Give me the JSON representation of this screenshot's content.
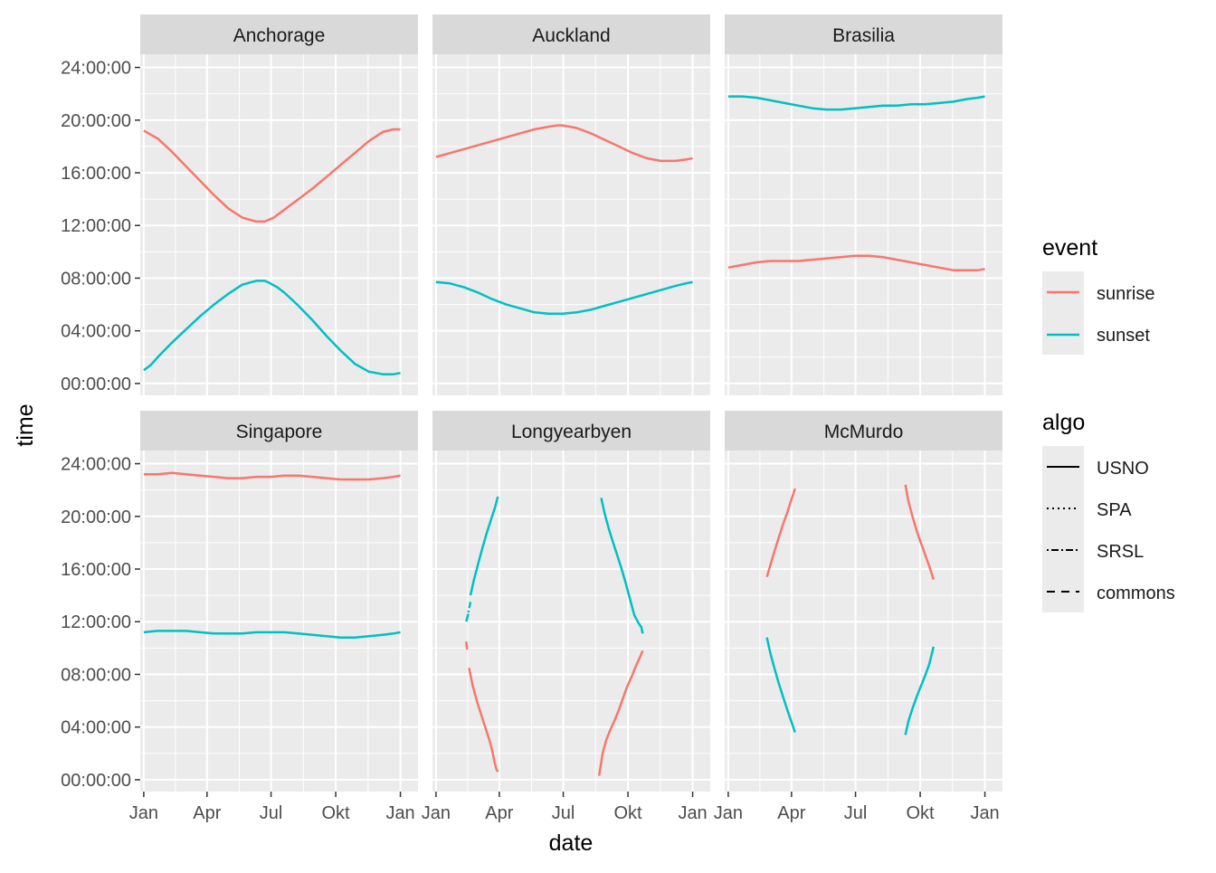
{
  "chart_data": {
    "type": "line",
    "xlabel": "date",
    "ylabel": "time",
    "x_ticks": [
      "Jan",
      "Apr",
      "Jul",
      "Okt",
      "Jan"
    ],
    "y_ticks": [
      "00:00:00",
      "04:00:00",
      "08:00:00",
      "12:00:00",
      "16:00:00",
      "20:00:00",
      "24:00:00"
    ],
    "x_range_days": [
      -5,
      390
    ],
    "y_range_hours": [
      -0.9,
      25.0
    ],
    "grid": true,
    "legend_position": "right",
    "legends": {
      "event": {
        "title": "event",
        "items": [
          {
            "label": "sunrise",
            "color": "#F8766D"
          },
          {
            "label": "sunset",
            "color": "#00BFC4"
          }
        ]
      },
      "algo": {
        "title": "algo",
        "items": [
          {
            "label": "USNO",
            "dash": "solid"
          },
          {
            "label": "SPA",
            "dash": "dotted"
          },
          {
            "label": "SRSL",
            "dash": "dotdash"
          },
          {
            "label": "commons",
            "dash": "dashed"
          }
        ]
      }
    },
    "panels": [
      {
        "title": "Anchorage",
        "series": [
          {
            "event": "sunrise",
            "x": [
              0,
              20,
              40,
              60,
              80,
              100,
              120,
              140,
              160,
              172,
              185,
              200,
              220,
              240,
              260,
              280,
              300,
              320,
              340,
              355,
              365
            ],
            "y": [
              19.2,
              18.6,
              17.6,
              16.5,
              15.4,
              14.3,
              13.3,
              12.6,
              12.3,
              12.3,
              12.6,
              13.2,
              14.0,
              14.8,
              15.7,
              16.6,
              17.5,
              18.4,
              19.1,
              19.3,
              19.3
            ]
          },
          {
            "event": "sunset",
            "x": [
              0,
              10,
              20,
              40,
              60,
              80,
              100,
              120,
              140,
              160,
              172,
              180,
              190,
              200,
              220,
              240,
              260,
              280,
              300,
              320,
              340,
              355,
              365
            ],
            "y": [
              1.0,
              1.4,
              2.0,
              3.1,
              4.1,
              5.1,
              6.0,
              6.8,
              7.5,
              7.8,
              7.8,
              7.6,
              7.3,
              6.9,
              5.9,
              4.8,
              3.6,
              2.5,
              1.5,
              0.9,
              0.7,
              0.7,
              0.8
            ]
          }
        ]
      },
      {
        "title": "Auckland",
        "series": [
          {
            "event": "sunrise",
            "x": [
              0,
              20,
              40,
              60,
              80,
              100,
              120,
              140,
              160,
              172,
              180,
              200,
              220,
              240,
              260,
              280,
              300,
              320,
              340,
              355,
              365
            ],
            "y": [
              17.2,
              17.5,
              17.8,
              18.1,
              18.4,
              18.7,
              19.0,
              19.3,
              19.5,
              19.6,
              19.6,
              19.4,
              19.0,
              18.5,
              18.0,
              17.5,
              17.1,
              16.9,
              16.9,
              17.0,
              17.1
            ]
          },
          {
            "event": "sunset",
            "x": [
              0,
              20,
              40,
              60,
              80,
              100,
              120,
              140,
              160,
              172,
              180,
              200,
              220,
              240,
              260,
              280,
              300,
              320,
              340,
              355,
              365
            ],
            "y": [
              7.7,
              7.6,
              7.3,
              6.9,
              6.4,
              6.0,
              5.7,
              5.4,
              5.3,
              5.3,
              5.3,
              5.4,
              5.6,
              5.9,
              6.2,
              6.5,
              6.8,
              7.1,
              7.4,
              7.6,
              7.7
            ]
          }
        ]
      },
      {
        "title": "Brasilia",
        "series": [
          {
            "event": "sunrise",
            "x": [
              0,
              20,
              40,
              60,
              80,
              100,
              120,
              140,
              160,
              180,
              200,
              220,
              240,
              260,
              280,
              300,
              320,
              340,
              355,
              365
            ],
            "y": [
              8.8,
              9.0,
              9.2,
              9.3,
              9.3,
              9.3,
              9.4,
              9.5,
              9.6,
              9.7,
              9.7,
              9.6,
              9.4,
              9.2,
              9.0,
              8.8,
              8.6,
              8.6,
              8.6,
              8.7
            ]
          },
          {
            "event": "sunset",
            "x": [
              0,
              20,
              40,
              60,
              80,
              100,
              120,
              140,
              160,
              180,
              200,
              220,
              240,
              260,
              280,
              300,
              320,
              340,
              355,
              365
            ],
            "y": [
              21.8,
              21.8,
              21.7,
              21.5,
              21.3,
              21.1,
              20.9,
              20.8,
              20.8,
              20.9,
              21.0,
              21.1,
              21.1,
              21.2,
              21.2,
              21.3,
              21.4,
              21.6,
              21.7,
              21.8
            ]
          }
        ]
      },
      {
        "title": "Singapore",
        "series": [
          {
            "event": "sunrise",
            "x": [
              0,
              20,
              40,
              60,
              80,
              100,
              120,
              140,
              160,
              180,
              200,
              220,
              240,
              260,
              280,
              300,
              320,
              340,
              355,
              365
            ],
            "y": [
              23.2,
              23.2,
              23.3,
              23.2,
              23.1,
              23.0,
              22.9,
              22.9,
              23.0,
              23.0,
              23.1,
              23.1,
              23.0,
              22.9,
              22.8,
              22.8,
              22.8,
              22.9,
              23.0,
              23.1
            ]
          },
          {
            "event": "sunset",
            "x": [
              0,
              20,
              40,
              60,
              80,
              100,
              120,
              140,
              160,
              180,
              200,
              220,
              240,
              260,
              280,
              300,
              320,
              340,
              355,
              365
            ],
            "y": [
              11.2,
              11.3,
              11.3,
              11.3,
              11.2,
              11.1,
              11.1,
              11.1,
              11.2,
              11.2,
              11.2,
              11.1,
              11.0,
              10.9,
              10.8,
              10.8,
              10.9,
              11.0,
              11.1,
              11.2
            ]
          }
        ]
      },
      {
        "title": "Longyearbyen",
        "series": [
          {
            "event": "sunset",
            "algo": "commons",
            "x": [
              43,
              46
            ],
            "y": [
              12.0,
              12.6
            ]
          },
          {
            "event": "sunset",
            "algo": "dotdash",
            "x": [
              46,
              49
            ],
            "y": [
              12.7,
              13.5
            ]
          },
          {
            "event": "sunset",
            "x": [
              49,
              54,
              60,
              66,
              72,
              78,
              84,
              88
            ],
            "y": [
              14.0,
              15.2,
              16.4,
              17.6,
              18.7,
              19.7,
              20.7,
              21.5
            ]
          },
          {
            "event": "sunset",
            "x": [
              235,
              240,
              246,
              252,
              258,
              264,
              270,
              276,
              282,
              288,
              292,
              294
            ],
            "y": [
              21.4,
              20.2,
              19.0,
              18.0,
              17.0,
              16.0,
              14.9,
              13.7,
              12.5,
              11.9,
              11.6,
              11.1
            ]
          },
          {
            "event": "sunrise",
            "algo": "commons",
            "x": [
              43,
              45
            ],
            "y": [
              10.5,
              9.5
            ]
          },
          {
            "event": "sunrise",
            "x": [
              47,
              52,
              58,
              64,
              70,
              76,
              80,
              83,
              86,
              88
            ],
            "y": [
              8.5,
              7.2,
              6.0,
              5.0,
              4.0,
              3.0,
              2.2,
              1.4,
              0.8,
              0.6
            ]
          },
          {
            "event": "sunrise",
            "x": [
              232,
              234,
              237,
              242,
              248,
              254,
              260,
              266,
              272,
              278,
              284,
              290,
              294
            ],
            "y": [
              0.3,
              1.0,
              2.0,
              3.0,
              3.8,
              4.5,
              5.3,
              6.2,
              7.1,
              7.8,
              8.6,
              9.3,
              9.8
            ]
          }
        ]
      },
      {
        "title": "McMurdo",
        "series": [
          {
            "event": "sunrise",
            "x": [
              55,
              60,
              66,
              72,
              78,
              84,
              90,
              95
            ],
            "y": [
              15.4,
              16.3,
              17.4,
              18.4,
              19.4,
              20.3,
              21.3,
              22.1
            ]
          },
          {
            "event": "sunset",
            "x": [
              55,
              60,
              66,
              72,
              78,
              84,
              90,
              95
            ],
            "y": [
              10.8,
              9.6,
              8.4,
              7.3,
              6.3,
              5.3,
              4.4,
              3.6
            ]
          },
          {
            "event": "sunrise",
            "x": [
              252,
              256,
              262,
              268,
              274,
              280,
              286,
              292
            ],
            "y": [
              22.4,
              21.2,
              20.0,
              18.9,
              18.0,
              17.1,
              16.2,
              15.2
            ]
          },
          {
            "event": "sunset",
            "x": [
              252,
              256,
              262,
              268,
              274,
              280,
              286,
              292
            ],
            "y": [
              3.4,
              4.4,
              5.4,
              6.3,
              7.1,
              7.9,
              8.8,
              10.1
            ]
          }
        ]
      }
    ]
  }
}
